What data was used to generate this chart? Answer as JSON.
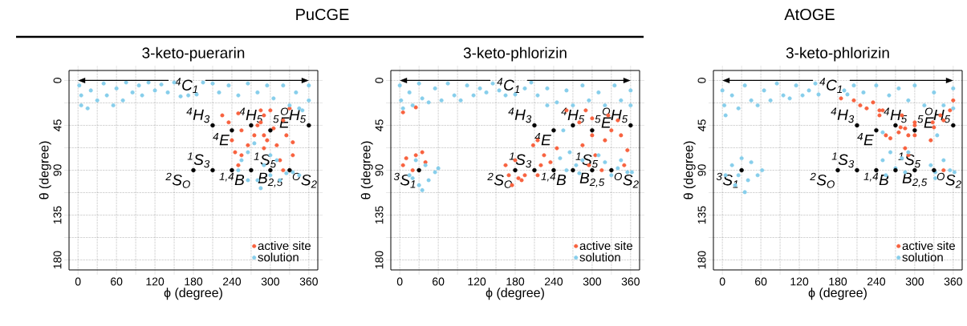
{
  "chart_data": [
    {
      "type": "scatter",
      "title": "3-keto-puerarin",
      "xlabel": "ϕ (degree)",
      "ylabel": "θ (degree)",
      "xlim": [
        -14,
        374
      ],
      "ylim": [
        190,
        -10
      ],
      "xticks": [
        0,
        {
          "value": 30,
          "label": null
        },
        60,
        {
          "value": 90,
          "label": null
        },
        120,
        {
          "value": 150,
          "label": null
        },
        180,
        {
          "value": 210,
          "label": null
        },
        240,
        {
          "value": 270,
          "label": null
        },
        300,
        {
          "value": 330,
          "label": null
        },
        360
      ],
      "yticks": [
        0,
        {
          "value": 22.5,
          "label": null
        },
        45,
        {
          "value": 67.5,
          "label": null
        },
        90,
        {
          "value": 112.5,
          "label": null
        },
        135,
        {
          "value": 157.5,
          "label": null
        },
        180
      ],
      "grid": true,
      "legend": "bottom right",
      "series": [
        {
          "name": "active site",
          "color": "#f8623f",
          "x": [
            225,
            235,
            240,
            245,
            250,
            255,
            255,
            285,
            285,
            275,
            280,
            290,
            290,
            295,
            300,
            305,
            310,
            315,
            320,
            325,
            330,
            335,
            335,
            265,
            250,
            290,
            320
          ],
          "values": [
            35,
            42,
            60,
            72,
            33,
            50,
            75,
            42,
            30,
            55,
            45,
            68,
            35,
            60,
            30,
            48,
            65,
            80,
            40,
            55,
            28,
            75,
            62,
            65,
            85,
            55,
            90
          ]
        },
        {
          "name": "solution",
          "color": "#87ceeb",
          "x": [
            2,
            5,
            5,
            15,
            20,
            30,
            40,
            45,
            55,
            60,
            70,
            75,
            85,
            95,
            100,
            110,
            120,
            130,
            140,
            150,
            160,
            172,
            185,
            195,
            210,
            220,
            235,
            250,
            265,
            280,
            295,
            305,
            320,
            330,
            340,
            345,
            350,
            360,
            360,
            255,
            265,
            265,
            280,
            285,
            290,
            300,
            310,
            315,
            325,
            335,
            345,
            275,
            300,
            250
          ],
          "values": [
            5,
            15,
            25,
            28,
            10,
            20,
            3,
            15,
            25,
            8,
            20,
            2,
            12,
            5,
            15,
            2,
            10,
            4,
            12,
            2,
            16,
            15,
            14,
            2,
            3,
            12,
            5,
            15,
            3,
            12,
            5,
            18,
            5,
            25,
            12,
            28,
            30,
            5,
            20,
            80,
            72,
            100,
            100,
            108,
            85,
            95,
            80,
            100,
            93,
            92,
            95,
            63,
            75,
            90
          ]
        },
        {
          "color": "#000000",
          "x": [
            210,
            240,
            270,
            300,
            360,
            180,
            210,
            240,
            270,
            300,
            330
          ],
          "values": [
            45,
            50,
            45,
            50,
            45,
            90,
            90,
            90,
            90,
            90,
            90
          ]
        }
      ],
      "annotations": [
        "PuCGE",
        "$^{4}$C$_{1}$",
        {
          "text": "$^{4}$H$_{3}$",
          "x": 210,
          "y": 45
        },
        {
          "text": "$^{4}$E",
          "x": 240,
          "y": 50
        },
        {
          "text": "$^{4}$H$_{5}$",
          "x": 270,
          "y": 45
        },
        {
          "text": "$^{5}$E",
          "x": 300,
          "y": 50
        },
        {
          "text": "$^{O}$H$_{5}$",
          "x": 360,
          "y": 45
        },
        {
          "text": "$^{2}$S$_{O}$",
          "x": 180,
          "y": 90
        },
        {
          "text": "$^{1}$S$_{3}$",
          "x": 210,
          "y": 90
        },
        {
          "text": "$^{1,4}$B",
          "x": 240,
          "y": 90
        },
        {
          "text": "$^{1}$S$_{5}$",
          "x": 270,
          "y": 90
        },
        {
          "text": "B$_{2,5}$",
          "x": 300,
          "y": 90
        },
        {
          "text": "$^{O}$S$_{2}$",
          "x": 330,
          "y": 90
        }
      ]
    },
    {
      "type": "scatter",
      "title": "3-keto-phlorizin",
      "xlabel": "ϕ (degree)",
      "ylabel": "θ (degree)",
      "xlim": [
        -14,
        374
      ],
      "ylim": [
        190,
        -10
      ],
      "xticks": [
        0,
        {
          "value": 30,
          "label": null
        },
        60,
        {
          "value": 90,
          "label": null
        },
        120,
        {
          "value": 150,
          "label": null
        },
        180,
        {
          "value": 210,
          "label": null
        },
        240,
        {
          "value": 270,
          "label": null
        },
        300,
        {
          "value": 330,
          "label": null
        },
        360
      ],
      "yticks": [
        0,
        {
          "value": 22.5,
          "label": null
        },
        45,
        {
          "value": 67.5,
          "label": null
        },
        90,
        {
          "value": 112.5,
          "label": null
        },
        135,
        {
          "value": 157.5,
          "label": null
        },
        180
      ],
      "grid": true,
      "legend": "bottom right",
      "series": [
        {
          "name": "active site",
          "color": "#f8623f",
          "x": [
            5,
            10,
            20,
            25,
            35,
            40,
            5,
            25,
            165,
            170,
            175,
            180,
            190,
            195,
            225,
            215,
            220,
            185,
            208,
            215,
            280,
            285,
            290,
            295,
            300,
            305,
            300,
            315,
            320,
            325,
            330,
            340,
            345,
            350,
            355,
            260,
            245,
            235
          ],
          "values": [
            85,
            78,
            90,
            75,
            72,
            82,
            32,
            27,
            85,
            95,
            105,
            80,
            100,
            95,
            75,
            95,
            85,
            98,
            65,
            60,
            42,
            65,
            30,
            85,
            55,
            75,
            38,
            90,
            60,
            35,
            50,
            40,
            55,
            85,
            70,
            30,
            68,
            82
          ]
        },
        {
          "name": "solution",
          "color": "#87ceeb",
          "x": [
            0,
            2,
            5,
            15,
            20,
            30,
            35,
            45,
            55,
            65,
            75,
            85,
            95,
            105,
            115,
            125,
            135,
            145,
            155,
            165,
            180,
            195,
            205,
            215,
            230,
            245,
            260,
            270,
            285,
            295,
            310,
            320,
            335,
            345,
            360,
            360,
            230,
            15,
            25,
            30,
            40,
            45,
            55,
            60,
            35,
            20,
            250,
            260,
            265,
            275,
            285,
            280,
            320,
            330,
            340,
            355,
            345,
            310,
            362,
            255
          ],
          "values": [
            5,
            20,
            28,
            12,
            25,
            3,
            18,
            22,
            8,
            20,
            3,
            15,
            20,
            5,
            15,
            8,
            12,
            3,
            10,
            15,
            14,
            8,
            2,
            15,
            8,
            22,
            10,
            25,
            5,
            20,
            12,
            25,
            5,
            20,
            10,
            25,
            25,
            95,
            80,
            105,
            85,
            100,
            92,
            88,
            110,
            98,
            78,
            90,
            72,
            85,
            80,
            93,
            82,
            95,
            88,
            92,
            80,
            75,
            92,
            50
          ]
        },
        {
          "color": "#000000",
          "x": [
            210,
            240,
            270,
            300,
            360,
            30,
            180,
            210,
            240,
            270,
            300,
            330
          ],
          "values": [
            45,
            50,
            45,
            50,
            45,
            90,
            90,
            90,
            90,
            90,
            90,
            90
          ]
        }
      ],
      "annotations": [
        "$^{4}$C$_{1}$",
        {
          "text": "$^{4}$H$_{3}$",
          "x": 210,
          "y": 45
        },
        {
          "text": "$^{4}$E",
          "x": 240,
          "y": 50
        },
        {
          "text": "$^{4}$H$_{5}$",
          "x": 270,
          "y": 45
        },
        {
          "text": "$^{5}$E",
          "x": 300,
          "y": 50
        },
        {
          "text": "$^{O}$H$_{5}$",
          "x": 360,
          "y": 45
        },
        {
          "text": "$^{3}$S$_{1}$",
          "x": 30,
          "y": 90
        },
        {
          "text": "$^{2}$S$_{O}$",
          "x": 180,
          "y": 90
        },
        {
          "text": "$^{1}$S$_{3}$",
          "x": 210,
          "y": 90
        },
        {
          "text": "$^{1,4}$B",
          "x": 240,
          "y": 90
        },
        {
          "text": "$^{1}$S$_{5}$",
          "x": 270,
          "y": 90
        },
        {
          "text": "B$_{2,5}$",
          "x": 300,
          "y": 90
        },
        {
          "text": "$^{O}$S$_{2}$",
          "x": 330,
          "y": 90
        }
      ]
    },
    {
      "type": "scatter",
      "title": "3-keto-phlorizin",
      "xlabel": "ϕ (degree)",
      "ylabel": "θ (degree)",
      "xlim": [
        -14,
        374
      ],
      "ylim": [
        190,
        -10
      ],
      "xticks": [
        0,
        {
          "value": 30,
          "label": null
        },
        60,
        {
          "value": 90,
          "label": null
        },
        120,
        {
          "value": 150,
          "label": null
        },
        180,
        {
          "value": 210,
          "label": null
        },
        240,
        {
          "value": 270,
          "label": null
        },
        300,
        {
          "value": 330,
          "label": null
        },
        360
      ],
      "yticks": [
        0,
        {
          "value": 22.5,
          "label": null
        },
        45,
        {
          "value": 67.5,
          "label": null
        },
        90,
        {
          "value": 112.5,
          "label": null
        },
        135,
        {
          "value": 157.5,
          "label": null
        },
        180
      ],
      "grid": true,
      "legend": "bottom right",
      "series": [
        {
          "name": "active site",
          "color": "#f8623f",
          "x": [
            185,
            205,
            215,
            225,
            235,
            245,
            250,
            255,
            262,
            278,
            280,
            285,
            290,
            300,
            300,
            300,
            328,
            325,
            330,
            285,
            290,
            345,
            345,
            355,
            360,
            340,
            245,
            275
          ],
          "values": [
            18,
            20,
            25,
            28,
            22,
            35,
            30,
            55,
            58,
            47,
            35,
            48,
            55,
            42,
            55,
            45,
            42,
            60,
            47,
            68,
            75,
            90,
            40,
            30,
            20,
            35,
            30,
            52
          ]
        },
        {
          "name": "solution",
          "color": "#87ceeb",
          "x": [
            0,
            3,
            5,
            15,
            25,
            35,
            45,
            55,
            65,
            75,
            85,
            95,
            105,
            115,
            125,
            135,
            145,
            150,
            195,
            190,
            205,
            220,
            240,
            260,
            275,
            290,
            300,
            315,
            330,
            345,
            360,
            360,
            5,
            15,
            20,
            30,
            40,
            45,
            55,
            62,
            35,
            25,
            250,
            255,
            262,
            270,
            280,
            285,
            325,
            332,
            345,
            355,
            332,
            290,
            250,
            335,
            362
          ],
          "values": [
            10,
            25,
            35,
            15,
            28,
            5,
            20,
            25,
            10,
            20,
            3,
            15,
            18,
            5,
            15,
            10,
            3,
            14,
            14,
            10,
            5,
            12,
            5,
            15,
            8,
            20,
            5,
            25,
            12,
            25,
            8,
            28,
            95,
            85,
            105,
            78,
            100,
            82,
            95,
            90,
            112,
            95,
            80,
            95,
            72,
            88,
            78,
            92,
            85,
            92,
            80,
            90,
            98,
            72,
            52,
            55,
            92
          ]
        },
        {
          "color": "#000000",
          "x": [
            210,
            240,
            270,
            300,
            360,
            30,
            180,
            210,
            240,
            270,
            300,
            330
          ],
          "values": [
            45,
            50,
            45,
            50,
            45,
            90,
            90,
            90,
            90,
            90,
            90,
            90
          ]
        }
      ],
      "annotations": [
        "AtOGE",
        "$^{4}$C$_{1}$",
        {
          "text": "$^{4}$H$_{3}$",
          "x": 210,
          "y": 45
        },
        {
          "text": "$^{4}$E",
          "x": 240,
          "y": 50
        },
        {
          "text": "$^{4}$H$_{5}$",
          "x": 270,
          "y": 45
        },
        {
          "text": "$^{5}$E",
          "x": 300,
          "y": 50
        },
        {
          "text": "$^{O}$H$_{5}$",
          "x": 360,
          "y": 45
        },
        {
          "text": "$^{3}$S$_{1}$",
          "x": 30,
          "y": 90
        },
        {
          "text": "$^{2}$S$_{O}$",
          "x": 180,
          "y": 90
        },
        {
          "text": "$^{1}$S$_{3}$",
          "x": 210,
          "y": 90
        },
        {
          "text": "$^{1,4}$B",
          "x": 240,
          "y": 90
        },
        {
          "text": "$^{1}$S$_{5}$",
          "x": 270,
          "y": 90
        },
        {
          "text": "B$_{2,5}$",
          "x": 300,
          "y": 90
        },
        {
          "text": "$^{O}$S$_{2}$",
          "x": 330,
          "y": 90
        }
      ]
    }
  ]
}
